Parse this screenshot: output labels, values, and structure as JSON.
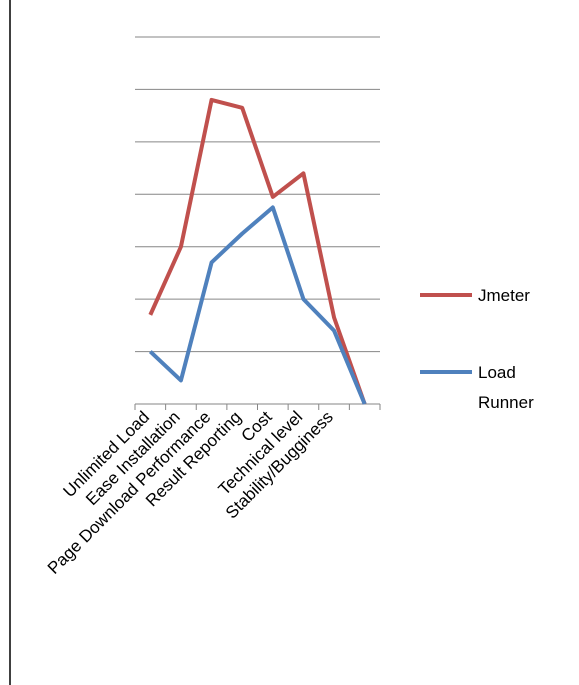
{
  "chart_data": {
    "type": "line",
    "categories": [
      "Unlimited Load",
      "Ease Installation",
      "Page Download Performance",
      "Result Reporting",
      "Cost",
      "Technical level",
      "Stability/Bugginess",
      null
    ],
    "series": [
      {
        "name": "Jmeter",
        "color": "#c0504d",
        "values": [
          1.7,
          3.0,
          5.8,
          5.65,
          3.95,
          4.4,
          1.65,
          0
        ]
      },
      {
        "name": "Load Runner",
        "color": "#4f81bd",
        "values": [
          1.0,
          0.45,
          2.7,
          3.25,
          3.75,
          2.0,
          1.4,
          0
        ]
      }
    ],
    "ylim": [
      0,
      7
    ],
    "yticks": [
      1,
      2,
      3,
      4,
      5,
      6,
      7
    ],
    "grid": true,
    "legend": "right"
  }
}
